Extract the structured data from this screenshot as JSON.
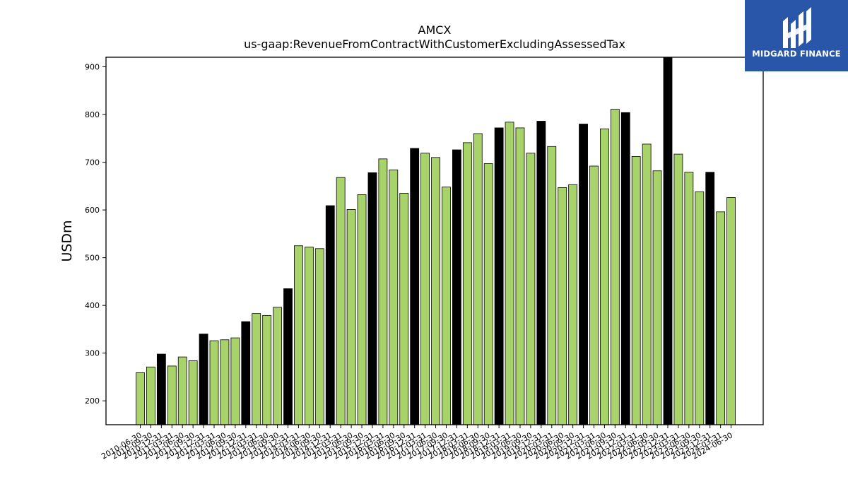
{
  "brand": {
    "name": "MIDGARD FINANCE",
    "color": "#2a56a9"
  },
  "chart_data": {
    "type": "bar",
    "title": "AMCX",
    "subtitle": "us-gaap:RevenueFromContractWithCustomerExcludingAssessedTax",
    "xlabel": "",
    "ylabel": "USDm",
    "ylim": [
      150,
      920
    ],
    "yticks": [
      200,
      300,
      400,
      500,
      600,
      700,
      800,
      900
    ],
    "grid": false,
    "colors": {
      "quarter": "#a8d26a",
      "fiscal_year_end": "#000000",
      "edge": "#000000"
    },
    "categories": [
      "2010-06-30",
      "2010-09-30",
      "2010-12-31",
      "2011-03-31",
      "2011-06-30",
      "2011-09-30",
      "2011-12-31",
      "2012-03-31",
      "2012-06-30",
      "2012-09-30",
      "2012-12-31",
      "2013-03-31",
      "2013-06-30",
      "2013-09-30",
      "2013-12-31",
      "2014-03-31",
      "2014-06-30",
      "2014-09-30",
      "2014-12-31",
      "2015-03-31",
      "2015-06-30",
      "2015-09-30",
      "2015-12-31",
      "2016-03-31",
      "2016-06-30",
      "2016-09-30",
      "2016-12-31",
      "2017-03-31",
      "2017-06-30",
      "2017-09-30",
      "2017-12-31",
      "2018-03-31",
      "2018-06-30",
      "2018-09-30",
      "2018-12-31",
      "2019-03-31",
      "2019-06-30",
      "2019-09-30",
      "2019-12-31",
      "2020-03-31",
      "2020-06-30",
      "2020-09-30",
      "2020-12-31",
      "2021-03-31",
      "2021-06-30",
      "2021-09-30",
      "2021-12-31",
      "2022-03-31",
      "2022-06-30",
      "2022-09-30",
      "2022-12-31",
      "2023-03-31",
      "2023-06-30",
      "2023-09-30",
      "2023-12-31",
      "2024-03-31",
      "2024-06-30"
    ],
    "values": [
      259,
      271,
      298,
      273,
      292,
      284,
      340,
      326,
      328,
      332,
      366,
      383,
      379,
      396,
      435,
      525,
      522,
      519,
      609,
      668,
      601,
      632,
      678,
      707,
      684,
      635,
      729,
      719,
      710,
      648,
      726,
      741,
      760,
      697,
      772,
      784,
      772,
      719,
      786,
      733,
      647,
      653,
      780,
      692,
      770,
      811,
      804,
      712,
      738,
      682,
      922,
      717,
      679,
      638,
      679,
      596,
      626
    ],
    "highlighted": [
      false,
      false,
      true,
      false,
      false,
      false,
      true,
      false,
      false,
      false,
      true,
      false,
      false,
      false,
      true,
      false,
      false,
      false,
      true,
      false,
      false,
      false,
      true,
      false,
      false,
      false,
      true,
      false,
      false,
      false,
      true,
      false,
      false,
      false,
      true,
      false,
      false,
      false,
      true,
      false,
      false,
      false,
      true,
      false,
      false,
      false,
      true,
      false,
      false,
      false,
      true,
      false,
      false,
      false,
      true,
      false,
      false
    ]
  }
}
